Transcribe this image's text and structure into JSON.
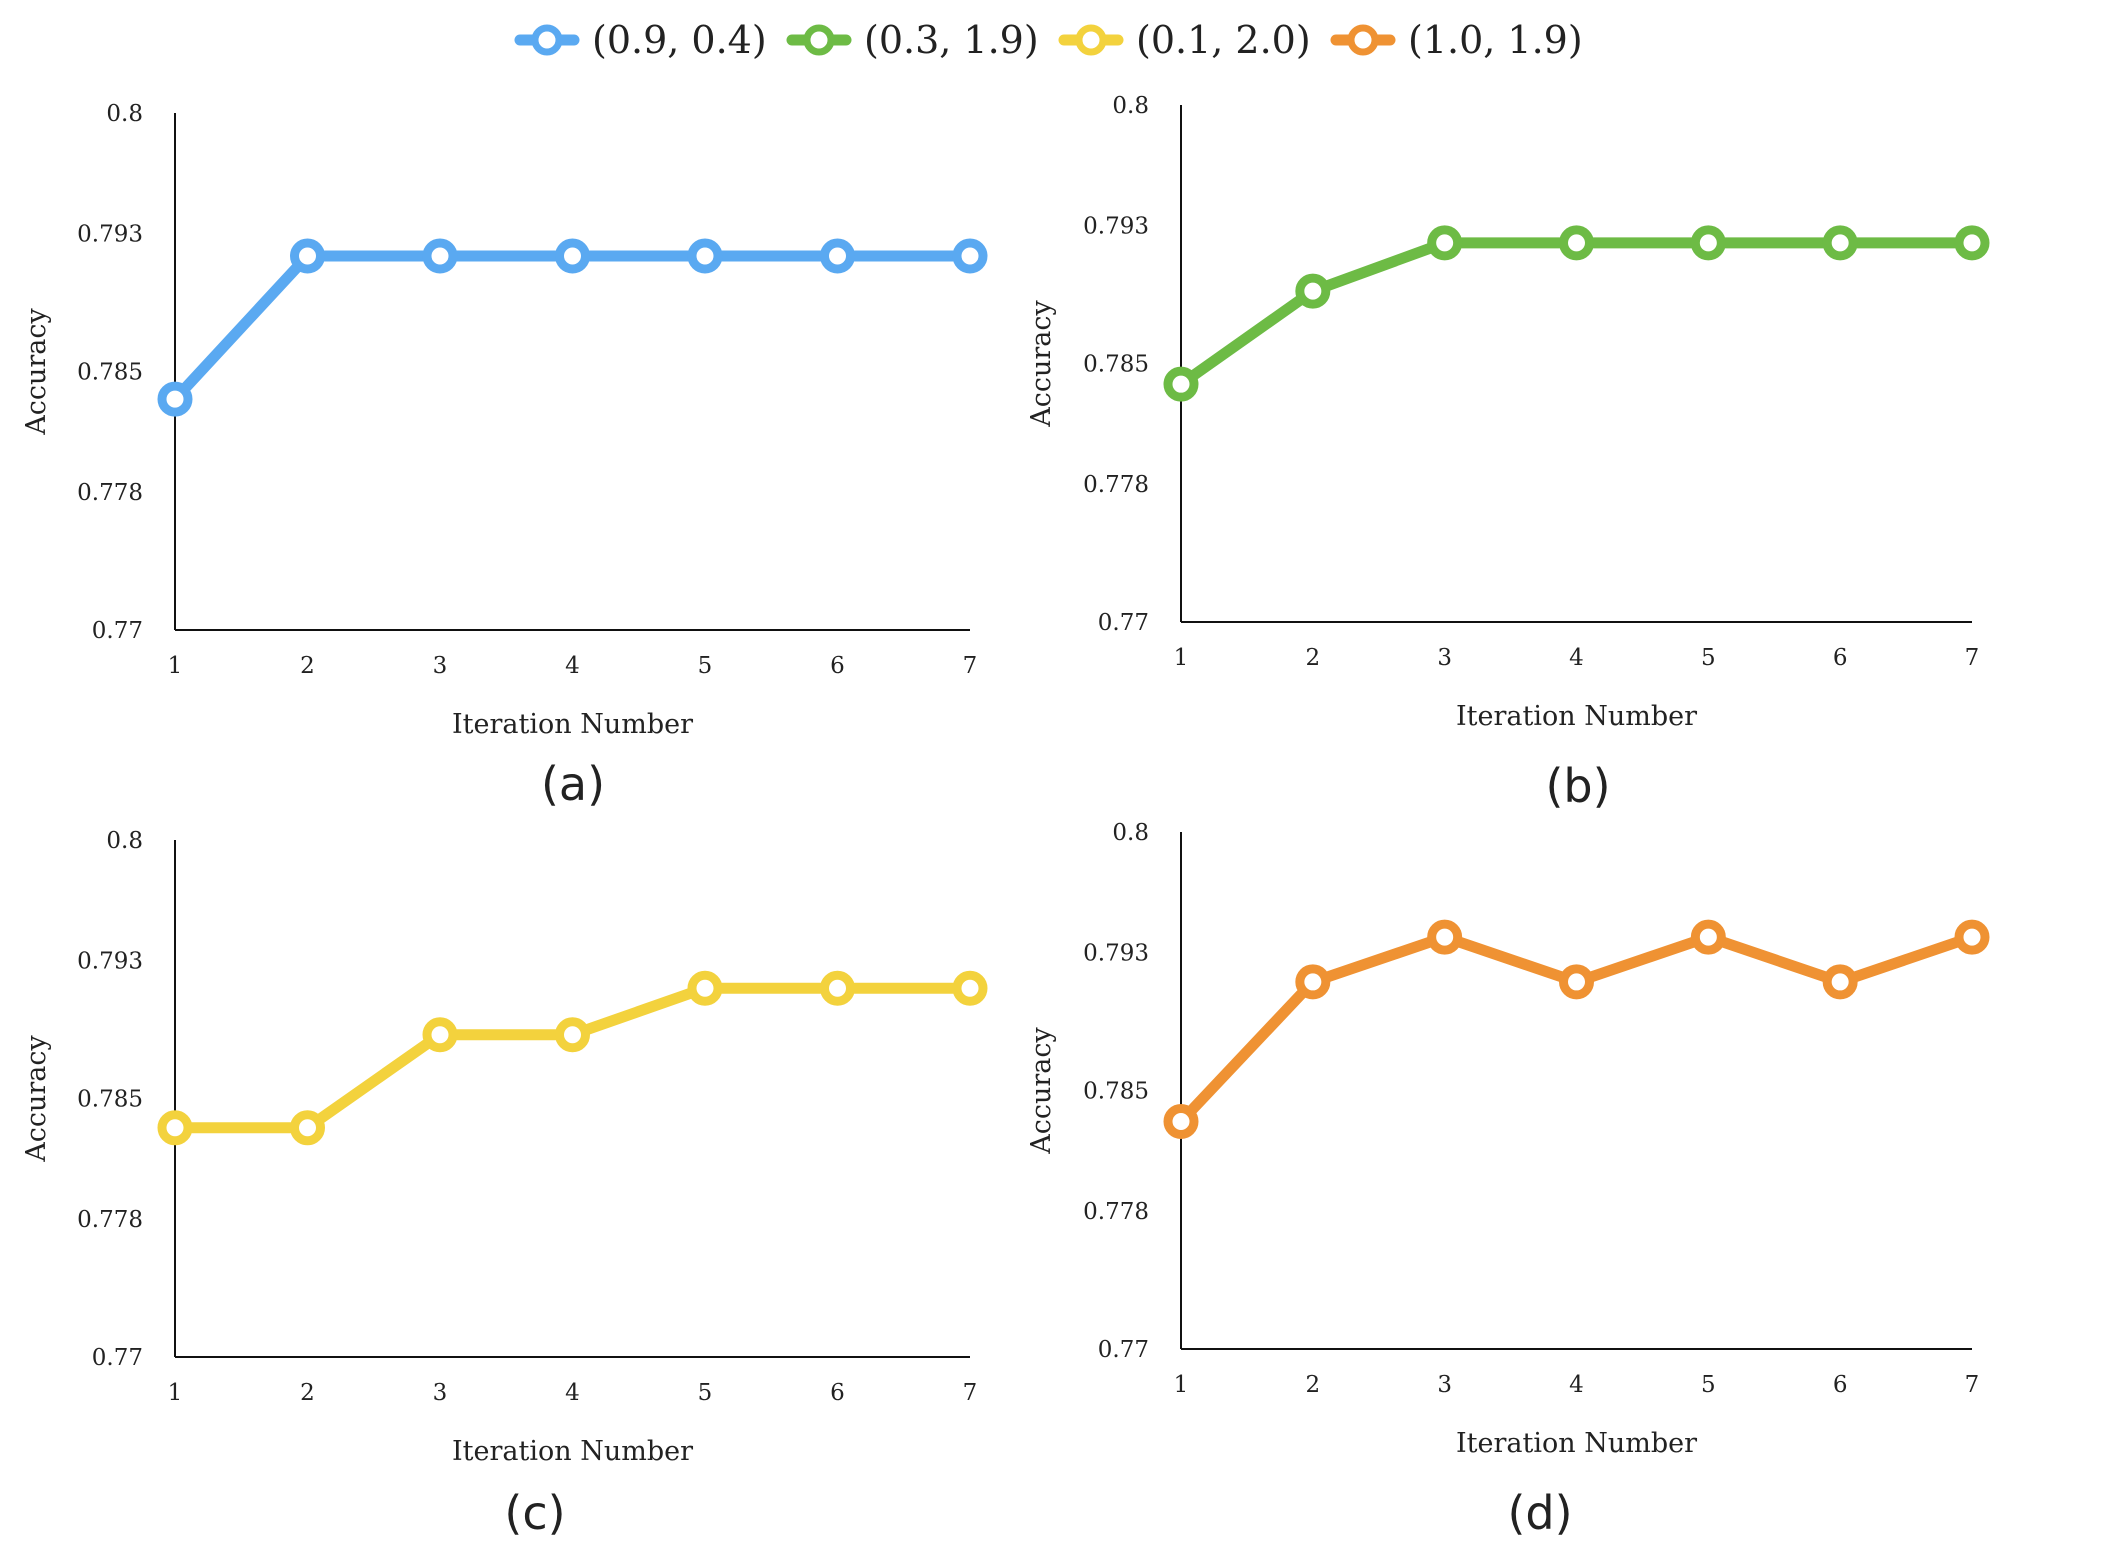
{
  "legend": [
    {
      "label": "(0.9, 0.4)",
      "color": "#5aa9f1"
    },
    {
      "label": "(0.3, 1.9)",
      "color": "#6dbb45"
    },
    {
      "label": "(0.1, 2.0)",
      "color": "#f3d23d"
    },
    {
      "label": "(1.0, 1.9)",
      "color": "#ef9233"
    }
  ],
  "chart_data": [
    {
      "type": "line",
      "caption": "(a)",
      "xlabel": "Iteration Number",
      "ylabel": "Accuracy",
      "x": [
        1,
        2,
        3,
        4,
        5,
        6,
        7
      ],
      "x_tick_labels": [
        "1",
        "2",
        "3",
        "4",
        "5",
        "6",
        "7"
      ],
      "y_ticks": [
        0.77,
        0.778,
        0.785,
        0.793,
        0.8
      ],
      "y_tick_labels": [
        "0.77",
        "0.778",
        "0.785",
        "0.793",
        "0.8"
      ],
      "ylim": [
        0.77,
        0.8
      ],
      "grid": false,
      "series": [
        {
          "name": "(0.9, 0.4)",
          "color": "#5aa9f1",
          "values": [
            0.7834,
            0.7917,
            0.7917,
            0.7917,
            0.7917,
            0.7917,
            0.7917
          ]
        }
      ]
    },
    {
      "type": "line",
      "caption": "(b)",
      "xlabel": "Iteration Number",
      "ylabel": "Accuracy",
      "x": [
        1,
        2,
        3,
        4,
        5,
        6,
        7
      ],
      "x_tick_labels": [
        "1",
        "2",
        "3",
        "4",
        "5",
        "6",
        "7"
      ],
      "y_ticks": [
        0.77,
        0.778,
        0.785,
        0.793,
        0.8
      ],
      "y_tick_labels": [
        "0.77",
        "0.778",
        "0.785",
        "0.793",
        "0.8"
      ],
      "ylim": [
        0.77,
        0.8
      ],
      "grid": false,
      "series": [
        {
          "name": "(0.3, 1.9)",
          "color": "#6dbb45",
          "values": [
            0.7838,
            0.7892,
            0.792,
            0.792,
            0.792,
            0.792,
            0.792
          ]
        }
      ]
    },
    {
      "type": "line",
      "caption": "(c)",
      "xlabel": "Iteration Number",
      "ylabel": "Accuracy",
      "x": [
        1,
        2,
        3,
        4,
        5,
        6,
        7
      ],
      "x_tick_labels": [
        "1",
        "2",
        "3",
        "4",
        "5",
        "6",
        "7"
      ],
      "y_ticks": [
        0.77,
        0.778,
        0.785,
        0.793,
        0.8
      ],
      "y_tick_labels": [
        "0.77",
        "0.778",
        "0.785",
        "0.793",
        "0.8"
      ],
      "ylim": [
        0.77,
        0.8
      ],
      "grid": false,
      "series": [
        {
          "name": "(0.1, 2.0)",
          "color": "#f3d23d",
          "values": [
            0.7833,
            0.7833,
            0.7887,
            0.7887,
            0.7914,
            0.7914,
            0.7914
          ]
        }
      ]
    },
    {
      "type": "line",
      "caption": "(d)",
      "xlabel": "Iteration Number",
      "ylabel": "Accuracy",
      "x": [
        1,
        2,
        3,
        4,
        5,
        6,
        7
      ],
      "x_tick_labels": [
        "1",
        "2",
        "3",
        "4",
        "5",
        "6",
        "7"
      ],
      "y_ticks": [
        0.77,
        0.778,
        0.785,
        0.793,
        0.8
      ],
      "y_tick_labels": [
        "0.77",
        "0.778",
        "0.785",
        "0.793",
        "0.8"
      ],
      "ylim": [
        0.77,
        0.8
      ],
      "grid": false,
      "series": [
        {
          "name": "(1.0, 1.9)",
          "color": "#ef9233",
          "values": [
            0.7832,
            0.7913,
            0.7939,
            0.7913,
            0.7939,
            0.7913,
            0.7939
          ]
        }
      ]
    }
  ]
}
